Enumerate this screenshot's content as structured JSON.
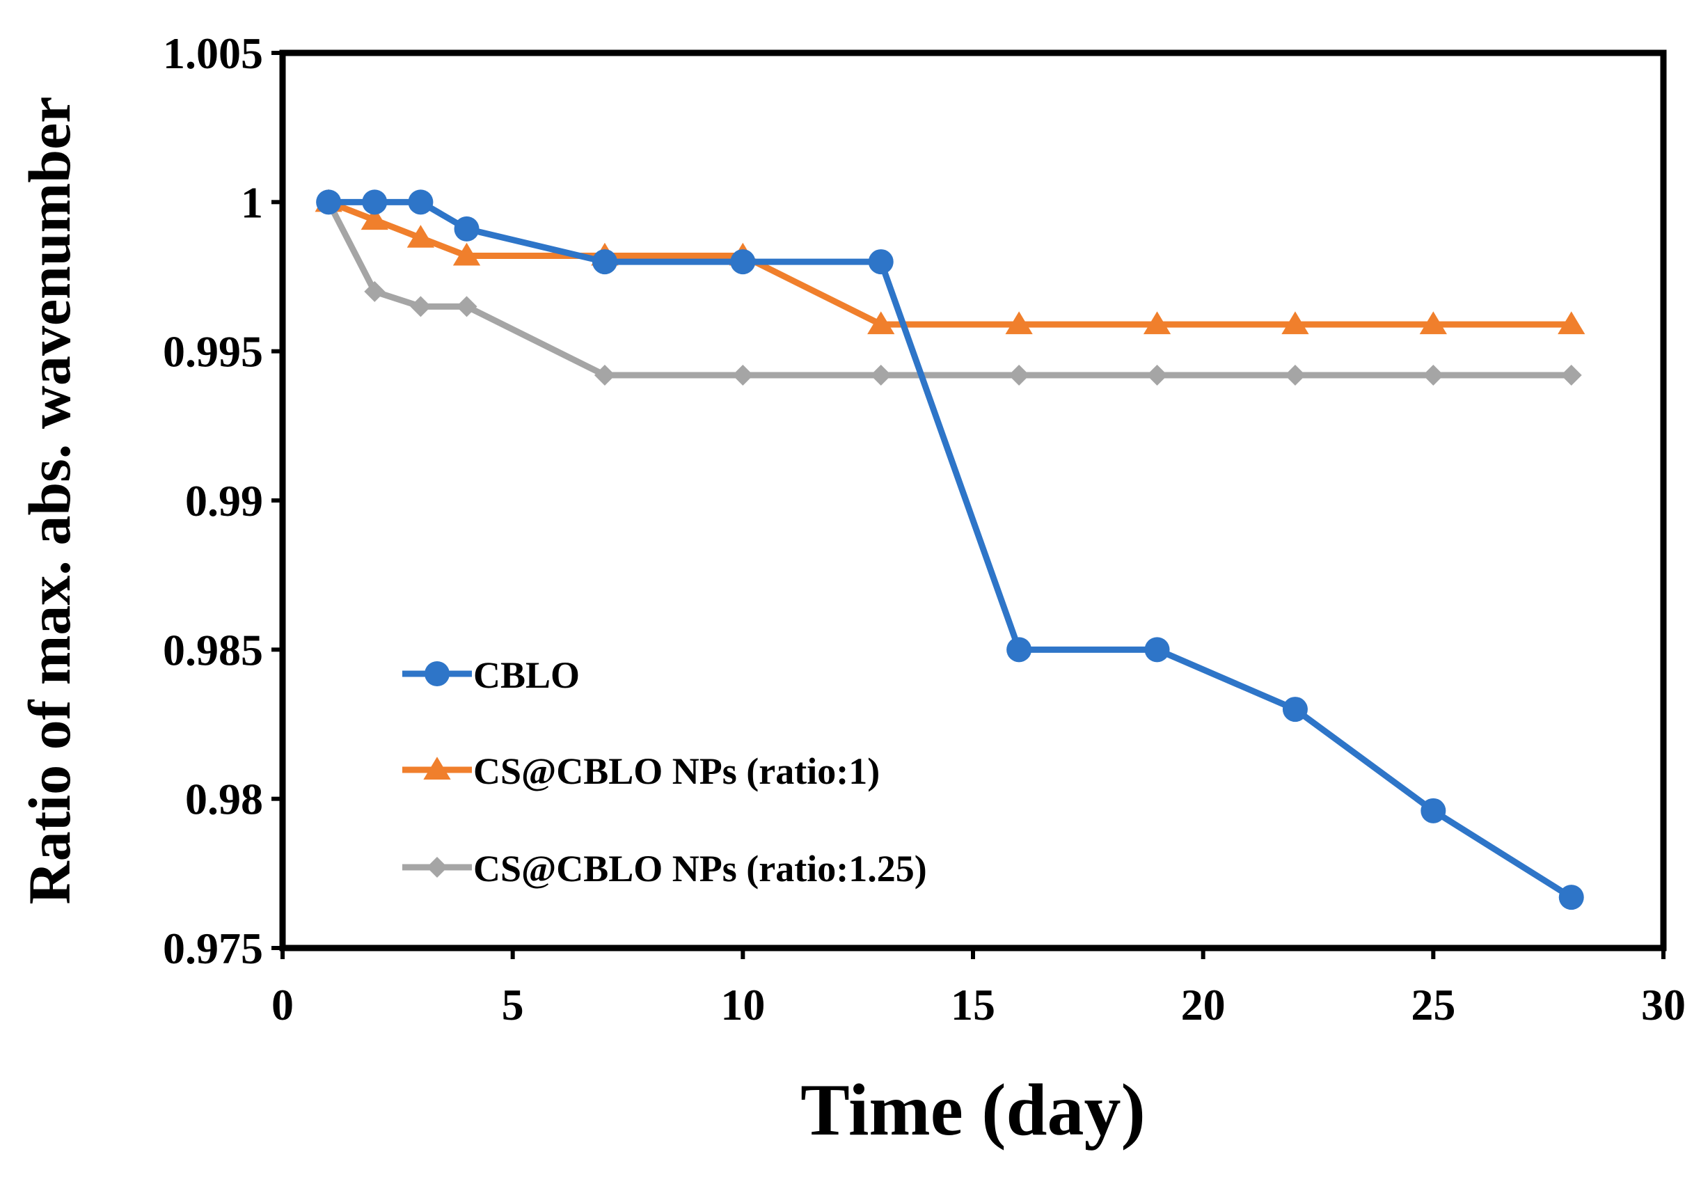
{
  "chart_data": {
    "type": "line",
    "title": "",
    "xlabel": "Time (day)",
    "ylabel": "Ratio of max. abs. wavenumber",
    "xlim": [
      0,
      30
    ],
    "ylim": [
      0.975,
      1.005
    ],
    "xticks": [
      0,
      5,
      10,
      15,
      20,
      25,
      30
    ],
    "xtick_labels": [
      "0",
      "5",
      "10",
      "15",
      "20",
      "25",
      "30"
    ],
    "yticks": [
      0.975,
      0.98,
      0.985,
      0.99,
      0.995,
      1,
      1.005
    ],
    "ytick_labels": [
      "0.975",
      "0.98",
      "0.985",
      "0.99",
      "0.995",
      "1",
      "1.005"
    ],
    "grid": false,
    "legend_position": "lower-left",
    "series": [
      {
        "name": "CBLO",
        "color": "#2e75c8",
        "marker": "circle",
        "x": [
          1,
          2,
          3,
          4,
          7,
          10,
          13,
          16,
          19,
          22,
          25,
          28
        ],
        "y": [
          1.0,
          1.0,
          1.0,
          0.9991,
          0.998,
          0.998,
          0.998,
          0.985,
          0.985,
          0.983,
          0.9796,
          0.9767
        ]
      },
      {
        "name": "CS@CBLO NPs (ratio:1)",
        "color": "#f07f2c",
        "marker": "triangle",
        "x": [
          1,
          2,
          3,
          4,
          7,
          10,
          13,
          16,
          19,
          22,
          25,
          28
        ],
        "y": [
          1.0,
          0.9994,
          0.9988,
          0.9982,
          0.9982,
          0.9982,
          0.9959,
          0.9959,
          0.9959,
          0.9959,
          0.9959,
          0.9959
        ]
      },
      {
        "name": "CS@CBLO NPs (ratio:1.25)",
        "color": "#a5a5a5",
        "marker": "diamond",
        "x": [
          1,
          2,
          3,
          4,
          7,
          10,
          13,
          16,
          19,
          22,
          25,
          28
        ],
        "y": [
          1.0,
          0.997,
          0.9965,
          0.9965,
          0.9942,
          0.9942,
          0.9942,
          0.9942,
          0.9942,
          0.9942,
          0.9942,
          0.9942
        ]
      }
    ]
  }
}
